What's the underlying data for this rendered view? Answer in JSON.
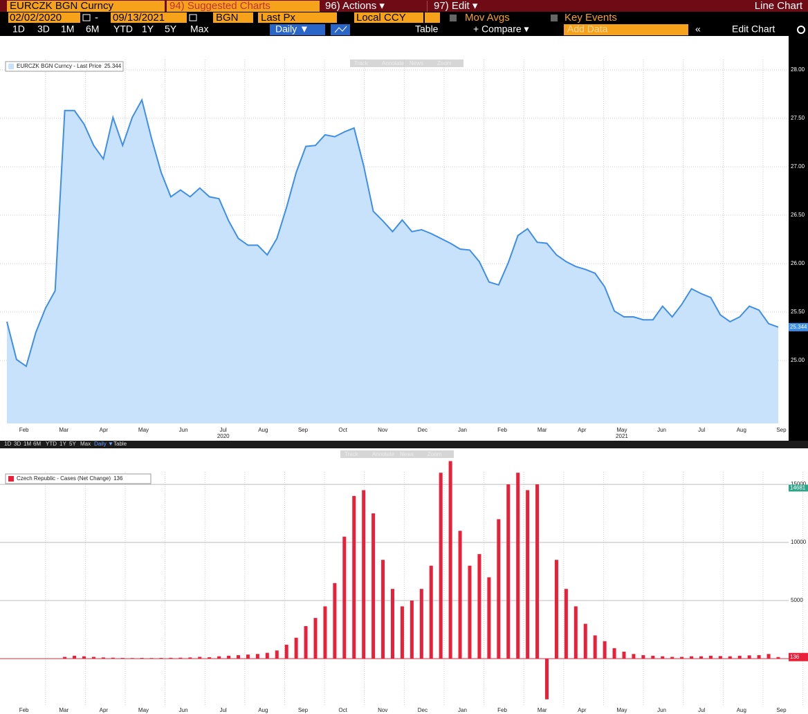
{
  "toolbar": {
    "security": "EURCZK BGN Curncy",
    "suggested": "94) Suggested Charts",
    "actions": "96) Actions ▾",
    "edit": "97) Edit ▾",
    "view": "Line Chart",
    "start_date": "02/02/2020",
    "dash": "-",
    "end_date": "09/13/2021",
    "source": "BGN",
    "field": "Last Px",
    "currency": "Local CCY",
    "mov_avgs": "Mov Avgs",
    "key_events": "Key Events",
    "periods": [
      "1D",
      "3D",
      "1M",
      "6M",
      "YTD",
      "1Y",
      "5Y",
      "Max"
    ],
    "frequency": "Daily ▼",
    "table": "Table",
    "compare": "+ Compare ▾",
    "add_data": "Add Data",
    "collapse": "«",
    "edit_chart": "Edit Chart",
    "overlay_tools": [
      "Track",
      "Annotate",
      "News",
      "Zoom"
    ],
    "mini_toolbar": [
      "1D",
      "3D",
      "1M",
      "6M",
      "YTD",
      "1Y",
      "5Y",
      "Max",
      "Daily ▼",
      "Table"
    ]
  },
  "chart_data": [
    {
      "type": "area",
      "legend": "EURCZK BGN Curncy - Last Price",
      "last_value": 25.344,
      "color": "#3d8ee8",
      "fill": "#c9e2fb",
      "xticks": [
        "Feb",
        "Mar",
        "Apr",
        "May",
        "Jun",
        "Jul",
        "Aug",
        "Sep",
        "Oct",
        "Nov",
        "Dec",
        "Jan",
        "Feb",
        "Mar",
        "Apr",
        "May",
        "Jun",
        "Jul",
        "Aug",
        "Sep"
      ],
      "year_labels": [
        "2020",
        "2021"
      ],
      "values": [
        25.4,
        25.01,
        24.94,
        25.29,
        25.54,
        25.72,
        27.58,
        27.58,
        27.44,
        27.22,
        27.08,
        27.51,
        27.22,
        27.51,
        27.69,
        27.29,
        26.94,
        26.69,
        26.76,
        26.69,
        26.78,
        26.69,
        26.67,
        26.44,
        26.26,
        26.19,
        26.19,
        26.09,
        26.26,
        26.58,
        26.94,
        27.21,
        27.22,
        27.33,
        27.31,
        27.36,
        27.4,
        27.01,
        26.54,
        26.44,
        26.33,
        26.45,
        26.33,
        26.35,
        26.31,
        26.26,
        26.21,
        26.15,
        26.14,
        26.02,
        25.81,
        25.78,
        26.01,
        26.29,
        26.36,
        26.22,
        26.21,
        26.09,
        26.02,
        25.97,
        25.94,
        25.9,
        25.76,
        25.51,
        25.45,
        25.45,
        25.42,
        25.42,
        25.56,
        25.45,
        25.58,
        25.74,
        25.69,
        25.65,
        25.47,
        25.4,
        25.45,
        25.56,
        25.52,
        25.38,
        25.344
      ],
      "ylim": [
        24.35,
        28.35
      ],
      "yticks": [
        {
          "value": 25,
          "label": "25.00"
        },
        {
          "value": 25.5,
          "label": "25.50"
        },
        {
          "value": 26,
          "label": "26.00"
        },
        {
          "value": 26.5,
          "label": "26.50"
        },
        {
          "value": 27,
          "label": "27.00"
        },
        {
          "value": 27.5,
          "label": "27.50"
        },
        {
          "value": 28,
          "label": "28.00"
        }
      ],
      "grid": true
    },
    {
      "type": "bar",
      "legend": "Czech Republic - Cases (Net Change)",
      "last_value": 136,
      "marker_value": 14681,
      "color": "#e8203a",
      "xticks": [
        "Feb",
        "Mar",
        "Apr",
        "May",
        "Jun",
        "Jul",
        "Aug",
        "Sep",
        "Oct",
        "Nov",
        "Dec",
        "Jan",
        "Feb",
        "Mar",
        "Apr",
        "May",
        "Jun",
        "Jul",
        "Aug",
        "Sep"
      ],
      "values": [
        0,
        0,
        0,
        0,
        0,
        20,
        150,
        250,
        200,
        150,
        100,
        80,
        60,
        50,
        60,
        50,
        60,
        70,
        80,
        100,
        150,
        120,
        200,
        250,
        300,
        350,
        400,
        500,
        700,
        1200,
        1800,
        2800,
        3500,
        4500,
        6500,
        10500,
        14000,
        14500,
        12500,
        8500,
        6000,
        4500,
        5000,
        6000,
        8000,
        16000,
        17000,
        11000,
        8000,
        9000,
        7000,
        12000,
        15000,
        16000,
        14500,
        15000,
        -3500,
        8500,
        6000,
        4500,
        3000,
        2000,
        1500,
        900,
        600,
        400,
        300,
        250,
        200,
        150,
        150,
        200,
        200,
        250,
        220,
        200,
        250,
        280,
        300,
        400,
        136
      ],
      "ylim": [
        -4050,
        18100
      ],
      "yticks": [
        5000,
        10000,
        15000
      ],
      "grid": true
    }
  ]
}
